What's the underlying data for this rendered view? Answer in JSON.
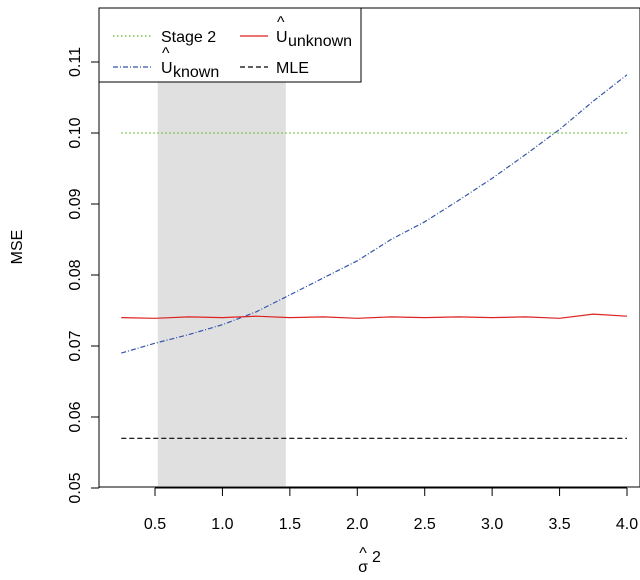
{
  "chart_data": {
    "type": "line",
    "title": "",
    "xlabel": "σ̂²",
    "ylabel": "MSE",
    "xlim": [
      0.25,
      4.0
    ],
    "ylim": [
      0.05,
      0.115
    ],
    "x_ticks": [
      0.5,
      1.0,
      1.5,
      2.0,
      2.5,
      3.0,
      3.5,
      4.0
    ],
    "x_tick_labels": [
      "0.5",
      "1.0",
      "1.5",
      "2.0",
      "2.5",
      "3.0",
      "3.5",
      "4.0"
    ],
    "y_ticks": [
      0.05,
      0.06,
      0.07,
      0.08,
      0.09,
      0.1,
      0.11
    ],
    "y_tick_labels": [
      "0.05",
      "0.06",
      "0.07",
      "0.08",
      "0.09",
      "0.10",
      "0.11"
    ],
    "shaded_region": {
      "x": [
        0.52,
        1.47
      ],
      "color": "#e0e0e0"
    },
    "legend_position": "top-left",
    "series": [
      {
        "name": "Stage 2",
        "style": "dotted",
        "color": "#66bb33",
        "x": [
          0.25,
          4.0
        ],
        "values": [
          0.1,
          0.1
        ]
      },
      {
        "name": "Û_known",
        "style": "dashdot",
        "color": "#3355aa",
        "x": [
          0.25,
          0.5,
          0.75,
          1.0,
          1.25,
          1.5,
          1.75,
          2.0,
          2.25,
          2.5,
          2.75,
          3.0,
          3.25,
          3.5,
          3.75,
          4.0
        ],
        "values": [
          0.069,
          0.0704,
          0.0716,
          0.073,
          0.0748,
          0.0772,
          0.0796,
          0.082,
          0.085,
          0.0875,
          0.0905,
          0.0936,
          0.097,
          0.1005,
          0.1045,
          0.1082
        ]
      },
      {
        "name": "Û_unknown",
        "style": "solid",
        "color": "#dd2222",
        "x": [
          0.25,
          0.5,
          0.75,
          1.0,
          1.25,
          1.5,
          1.75,
          2.0,
          2.25,
          2.5,
          2.75,
          3.0,
          3.25,
          3.5,
          3.75,
          4.0
        ],
        "values": [
          0.074,
          0.0739,
          0.0741,
          0.074,
          0.0742,
          0.074,
          0.0741,
          0.0739,
          0.0741,
          0.074,
          0.0741,
          0.074,
          0.0741,
          0.0739,
          0.0745,
          0.0742
        ]
      },
      {
        "name": "MLE",
        "style": "dashed",
        "color": "#000000",
        "x": [
          0.25,
          4.0
        ],
        "values": [
          0.057,
          0.057
        ]
      }
    ]
  },
  "legend": {
    "stage2": "Stage 2",
    "known_main": "U",
    "known_sub": "known",
    "unknown_main": "U",
    "unknown_sub": "unknown",
    "mle": "MLE"
  },
  "axis": {
    "ylabel": "MSE",
    "xlabel_main": "σ",
    "xlabel_sup": "2"
  }
}
